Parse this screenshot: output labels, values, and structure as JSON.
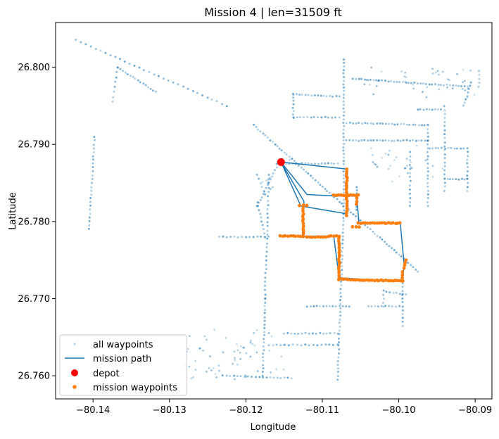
{
  "chart_data": {
    "type": "scatter",
    "title": "Mission 4 | len=31509 ft",
    "xlabel": "Longitude",
    "ylabel": "Latitude",
    "xlim": [
      -80.1449,
      -80.0878
    ],
    "ylim": [
      26.757,
      26.8058
    ],
    "xticks": [
      -80.14,
      -80.13,
      -80.12,
      -80.11,
      -80.1,
      -80.09
    ],
    "xtick_labels": [
      "−80.14",
      "−80.13",
      "−80.12",
      "−80.11",
      "−80.10",
      "−80.09"
    ],
    "yticks": [
      26.76,
      26.77,
      26.78,
      26.79,
      26.8
    ],
    "ytick_labels": [
      "26.760",
      "26.770",
      "26.780",
      "26.790",
      "26.800"
    ],
    "grid": false,
    "legend_position": "lower-left",
    "legend": [
      {
        "label": "all waypoints",
        "color": "#1f77b4",
        "marker": "small-dot"
      },
      {
        "label": "mission path",
        "color": "#1f77b4",
        "marker": "line"
      },
      {
        "label": "depot",
        "color": "#ff0000",
        "marker": "big-dot"
      },
      {
        "label": "mission waypoints",
        "color": "#ff7f0e",
        "marker": "dot"
      }
    ],
    "colors": {
      "all_waypoints": "#1f77b4",
      "mission_path": "#1f77b4",
      "depot": "#ff0000",
      "mission_waypoints": "#ff7f0e"
    },
    "depot": [
      -80.1154,
      26.7877
    ],
    "mission_path": [
      [
        -80.1154,
        26.7877
      ],
      [
        -80.1124,
        26.7826
      ],
      [
        -80.1126,
        26.7781
      ],
      [
        -80.1085,
        26.7781
      ],
      [
        -80.1078,
        26.7727
      ],
      [
        -80.0995,
        26.7722
      ],
      [
        -80.0993,
        26.7745
      ],
      [
        -80.0998,
        26.7798
      ],
      [
        -80.1052,
        26.7798
      ],
      [
        -80.1055,
        26.7833
      ],
      [
        -80.1083,
        26.7833
      ],
      [
        -80.112,
        26.7835
      ],
      [
        -80.1154,
        26.7877
      ],
      [
        -80.1068,
        26.7868
      ],
      [
        -80.1068,
        26.781
      ],
      [
        -80.1128,
        26.782
      ],
      [
        -80.1154,
        26.7877
      ]
    ],
    "mission_waypoint_segments": [
      {
        "from": [
          -80.1155,
          26.7781
        ],
        "to": [
          -80.1125,
          26.7781
        ]
      },
      {
        "from": [
          -80.112,
          26.778
        ],
        "to": [
          -80.1095,
          26.778
        ]
      },
      {
        "from": [
          -80.1092,
          26.7781
        ],
        "to": [
          -80.1078,
          26.7781
        ]
      },
      {
        "from": [
          -80.1125,
          26.7781
        ],
        "to": [
          -80.1125,
          26.782
        ]
      },
      {
        "from": [
          -80.113,
          26.7821
        ],
        "to": [
          -80.112,
          26.7821
        ]
      },
      {
        "from": [
          -80.1078,
          26.7781
        ],
        "to": [
          -80.1078,
          26.7727
        ]
      },
      {
        "from": [
          -80.1078,
          26.7725
        ],
        "to": [
          -80.0995,
          26.7723
        ]
      },
      {
        "from": [
          -80.0995,
          26.7723
        ],
        "to": [
          -80.0995,
          26.7735
        ]
      },
      {
        "from": [
          -80.0993,
          26.774
        ],
        "to": [
          -80.099,
          26.775
        ]
      },
      {
        "from": [
          -80.1053,
          26.7798
        ],
        "to": [
          -80.0998,
          26.7798
        ]
      },
      {
        "from": [
          -80.1068,
          26.7868
        ],
        "to": [
          -80.1068,
          26.7808
        ]
      },
      {
        "from": [
          -80.1085,
          26.7834
        ],
        "to": [
          -80.1053,
          26.7834
        ]
      },
      {
        "from": [
          -80.1055,
          26.7834
        ],
        "to": [
          -80.1055,
          26.7822
        ]
      },
      {
        "from": [
          -80.106,
          26.7793
        ],
        "to": [
          -80.1052,
          26.7793
        ]
      }
    ],
    "all_waypoint_segments": [
      {
        "from": [
          -80.1422,
          26.8035
        ],
        "to": [
          -80.1225,
          26.795
        ],
        "n": 32
      },
      {
        "from": [
          -80.119,
          26.7925
        ],
        "to": [
          -80.0975,
          26.7735
        ],
        "n": 70
      },
      {
        "from": [
          -80.159,
          26.8005
        ],
        "to": [
          -80.1512,
          26.7965
        ],
        "n": 0
      },
      {
        "from": [
          -80.1368,
          26.8
        ],
        "to": [
          -80.1318,
          26.7968
        ],
        "n": 16
      },
      {
        "from": [
          -80.1368,
          26.8
        ],
        "to": [
          -80.1375,
          26.7955
        ],
        "n": 8
      },
      {
        "from": [
          -80.1398,
          26.791
        ],
        "to": [
          -80.1405,
          26.779
        ],
        "n": 25
      },
      {
        "from": [
          -80.1072,
          26.801
        ],
        "to": [
          -80.1072,
          26.781
        ],
        "n": 45
      },
      {
        "from": [
          -80.1072,
          26.781
        ],
        "to": [
          -80.108,
          26.7595
        ],
        "n": 45
      },
      {
        "from": [
          -80.106,
          26.7985
        ],
        "to": [
          -80.091,
          26.7975
        ],
        "n": 40
      },
      {
        "from": [
          -80.1138,
          26.7965
        ],
        "to": [
          -80.1078,
          26.7962
        ],
        "n": 16
      },
      {
        "from": [
          -80.1138,
          26.7965
        ],
        "to": [
          -80.1138,
          26.7935
        ],
        "n": 8
      },
      {
        "from": [
          -80.1138,
          26.7935
        ],
        "to": [
          -80.1078,
          26.7935
        ],
        "n": 14
      },
      {
        "from": [
          -80.1068,
          26.7928
        ],
        "to": [
          -80.0962,
          26.7925
        ],
        "n": 28
      },
      {
        "from": [
          -80.1068,
          26.7905
        ],
        "to": [
          -80.0962,
          26.7905
        ],
        "n": 28
      },
      {
        "from": [
          -80.0962,
          26.7925
        ],
        "to": [
          -80.0962,
          26.782
        ],
        "n": 22
      },
      {
        "from": [
          -80.0975,
          26.7945
        ],
        "to": [
          -80.0945,
          26.7945
        ],
        "n": 9
      },
      {
        "from": [
          -80.094,
          26.795
        ],
        "to": [
          -80.094,
          26.784
        ],
        "n": 22
      },
      {
        "from": [
          -80.094,
          26.7855
        ],
        "to": [
          -80.091,
          26.7855
        ],
        "n": 9
      },
      {
        "from": [
          -80.096,
          26.7895
        ],
        "to": [
          -80.0915,
          26.7895
        ],
        "n": 12
      },
      {
        "from": [
          -80.0915,
          26.795
        ],
        "to": [
          -80.0905,
          26.798
        ],
        "n": 8
      },
      {
        "from": [
          -80.091,
          26.7895
        ],
        "to": [
          -80.091,
          26.784
        ],
        "n": 12
      },
      {
        "from": [
          -80.0895,
          26.7995
        ],
        "to": [
          -80.0895,
          26.7975
        ],
        "n": 5
      },
      {
        "from": [
          -80.0985,
          26.789
        ],
        "to": [
          -80.0985,
          26.782
        ],
        "n": 14
      },
      {
        "from": [
          -80.108,
          26.7875
        ],
        "to": [
          -80.116,
          26.7875
        ],
        "n": 20
      },
      {
        "from": [
          -80.1055,
          26.7845
        ],
        "to": [
          -80.1055,
          26.7815
        ],
        "n": 8
      },
      {
        "from": [
          -80.116,
          26.787
        ],
        "to": [
          -80.1185,
          26.782
        ],
        "n": 14
      },
      {
        "from": [
          -80.1185,
          26.7825
        ],
        "to": [
          -80.1175,
          26.778
        ],
        "n": 10
      },
      {
        "from": [
          -80.117,
          26.786
        ],
        "to": [
          -80.1175,
          26.77
        ],
        "n": 30
      },
      {
        "from": [
          -80.1175,
          26.77
        ],
        "to": [
          -80.1178,
          26.76
        ],
        "n": 22
      },
      {
        "from": [
          -80.1185,
          26.786
        ],
        "to": [
          -80.1175,
          26.7835
        ],
        "n": 6
      },
      {
        "from": [
          -80.1235,
          26.778
        ],
        "to": [
          -80.117,
          26.778
        ],
        "n": 14
      },
      {
        "from": [
          -80.112,
          26.769
        ],
        "to": [
          -80.1065,
          26.769
        ],
        "n": 14
      },
      {
        "from": [
          -80.102,
          26.771
        ],
        "to": [
          -80.099,
          26.7705
        ],
        "n": 8
      },
      {
        "from": [
          -80.104,
          26.769
        ],
        "to": [
          -80.0995,
          26.769
        ],
        "n": 11
      },
      {
        "from": [
          -80.0995,
          26.772
        ],
        "to": [
          -80.0995,
          26.7665
        ],
        "n": 12
      },
      {
        "from": [
          -80.102,
          26.7705
        ],
        "to": [
          -80.102,
          26.769
        ],
        "n": 4
      },
      {
        "from": [
          -80.115,
          26.7655
        ],
        "to": [
          -80.108,
          26.7655
        ],
        "n": 16
      },
      {
        "from": [
          -80.117,
          26.764
        ],
        "to": [
          -80.108,
          26.764
        ],
        "n": 18
      },
      {
        "from": [
          -80.123,
          26.76
        ],
        "to": [
          -80.114,
          26.7597
        ],
        "n": 20
      },
      {
        "from": [
          -80.1262,
          26.7607
        ],
        "to": [
          -80.1185,
          26.762
        ],
        "n": 0
      }
    ],
    "all_waypoint_scatter_regions": [
      {
        "x": [
          -80.128,
          -80.115
        ],
        "y": [
          26.7595,
          26.766
        ],
        "n": 60
      },
      {
        "x": [
          -80.105,
          -80.09
        ],
        "y": [
          26.796,
          26.8
        ],
        "n": 40
      },
      {
        "x": [
          -80.104,
          -80.094
        ],
        "y": [
          26.785,
          26.79
        ],
        "n": 30
      },
      {
        "x": [
          -80.118,
          -80.114
        ],
        "y": [
          26.784,
          26.788
        ],
        "n": 8
      }
    ]
  }
}
